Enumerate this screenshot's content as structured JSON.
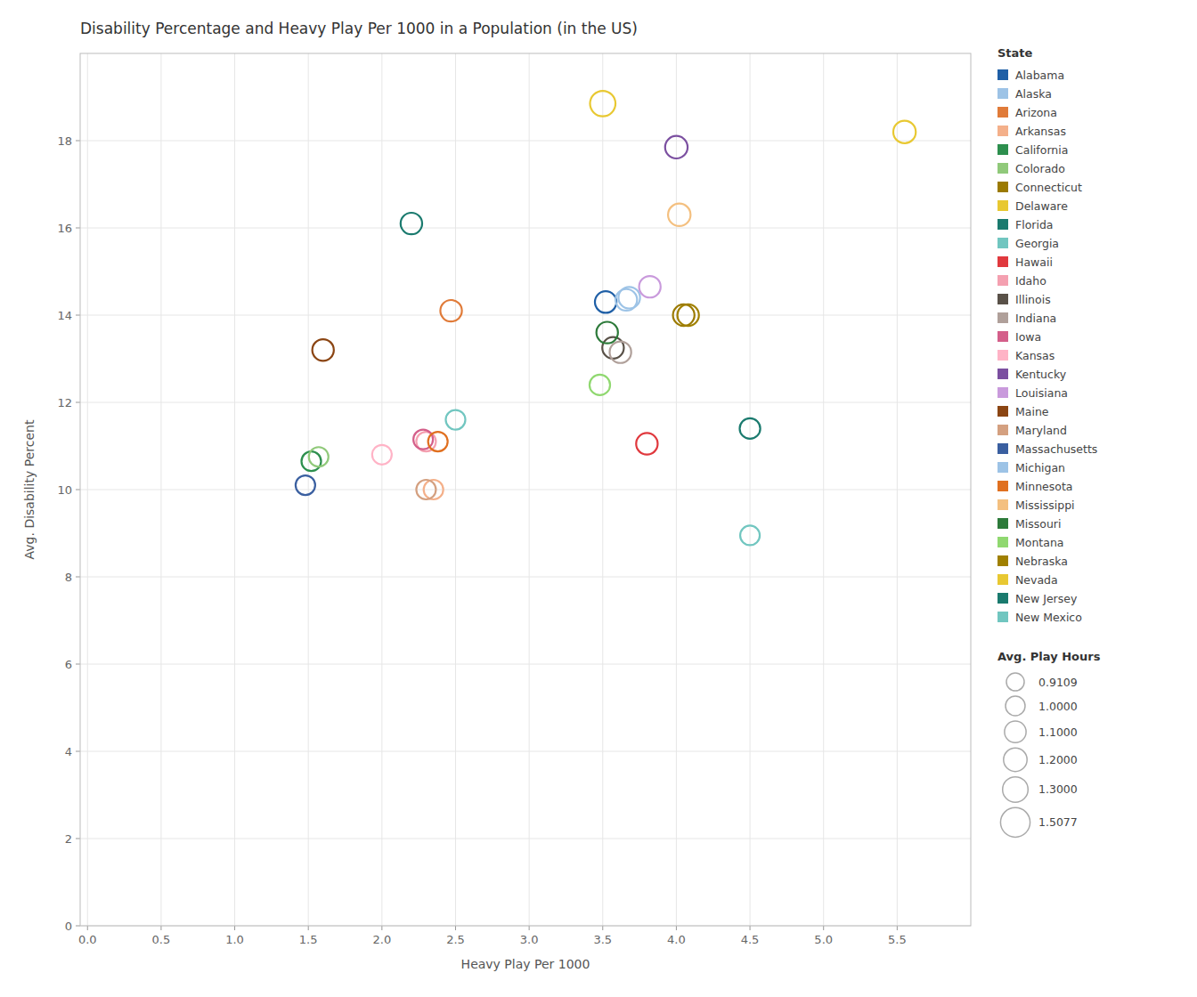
{
  "chart_data": {
    "type": "scatter",
    "title": "Disability Percentage and Heavy Play Per 1000 in a Population (in the US)",
    "x_label": "Heavy Play Per 1000",
    "y_label": "Avg. Disability Percent",
    "xlim": [
      -0.05,
      6.0
    ],
    "ylim": [
      0,
      20
    ],
    "xticks": [
      {
        "value": 0.0,
        "label": "0.0"
      },
      0.5,
      {
        "value": 1.0,
        "label": "1.0"
      },
      1.5,
      {
        "value": 2.0,
        "label": "2.0"
      },
      2.5,
      {
        "value": 3.0,
        "label": "3.0"
      },
      3.5,
      {
        "value": 4.0,
        "label": "4.0"
      },
      4.5,
      {
        "value": 5.0,
        "label": "5.0"
      },
      5.5
    ],
    "yticks": [
      0,
      2,
      4,
      6,
      8,
      10,
      12,
      14,
      16,
      18
    ],
    "grid": true,
    "legend": "right",
    "marker": "circle",
    "legend_title": "State",
    "size_title": "Avg. Play Hours",
    "series": [
      {
        "name": "Alabama",
        "color": "#1f5fa6",
        "x": [
          3.52
        ],
        "values": [
          14.3
        ],
        "sizes": [
          1.1
        ]
      },
      {
        "name": "Alaska",
        "color": "#9dc3e6",
        "x": [
          3.68
        ],
        "values": [
          14.4
        ],
        "sizes": [
          1.1
        ]
      },
      {
        "name": "Arizona",
        "color": "#e07b39",
        "x": [
          2.47
        ],
        "values": [
          14.1
        ],
        "sizes": [
          1.1
        ]
      },
      {
        "name": "Arkansas",
        "color": "#f4b08a",
        "x": [
          2.35
        ],
        "values": [
          10.0
        ],
        "sizes": [
          1.0
        ]
      },
      {
        "name": "California",
        "color": "#2d8f4e",
        "x": [
          1.52
        ],
        "values": [
          10.65
        ],
        "sizes": [
          1.0
        ]
      },
      {
        "name": "Colorado",
        "color": "#90c97a",
        "x": [
          1.57
        ],
        "values": [
          10.75
        ],
        "sizes": [
          1.0
        ]
      },
      {
        "name": "Connecticut",
        "color": "#9b7a00",
        "x": [
          4.05
        ],
        "values": [
          14.0
        ],
        "sizes": [
          1.1
        ]
      },
      {
        "name": "Delaware",
        "color": "#e8c832",
        "x": [
          3.5
        ],
        "values": [
          18.85
        ],
        "sizes": [
          1.3
        ]
      },
      {
        "name": "Florida",
        "color": "#1a7a6e",
        "x": [
          2.2
        ],
        "values": [
          16.1
        ],
        "sizes": [
          1.1
        ]
      },
      {
        "name": "Georgia",
        "color": "#71c6c0",
        "x": [
          2.5
        ],
        "values": [
          11.6
        ],
        "sizes": [
          1.0
        ]
      },
      {
        "name": "Hawaii",
        "color": "#e0393e",
        "x": [
          3.8
        ],
        "values": [
          11.05
        ],
        "sizes": [
          1.1
        ]
      },
      {
        "name": "Idaho",
        "color": "#f4a0b0",
        "x": [
          2.3
        ],
        "values": [
          11.1
        ],
        "sizes": [
          1.0
        ]
      },
      {
        "name": "Illinois",
        "color": "#595148",
        "x": [
          3.57
        ],
        "values": [
          13.25
        ],
        "sizes": [
          1.1
        ]
      },
      {
        "name": "Indiana",
        "color": "#b0a09a",
        "x": [
          3.62
        ],
        "values": [
          13.15
        ],
        "sizes": [
          1.1
        ]
      },
      {
        "name": "Iowa",
        "color": "#d45f8a",
        "x": [
          2.28
        ],
        "values": [
          11.15
        ],
        "sizes": [
          1.0
        ]
      },
      {
        "name": "Kansas",
        "color": "#ffb3c6",
        "x": [
          2.0
        ],
        "values": [
          10.8
        ],
        "sizes": [
          1.0
        ]
      },
      {
        "name": "Kentucky",
        "color": "#7b4fa0",
        "x": [
          4.0
        ],
        "values": [
          17.85
        ],
        "sizes": [
          1.15
        ]
      },
      {
        "name": "Louisiana",
        "color": "#c99adc",
        "x": [
          3.82
        ],
        "values": [
          14.65
        ],
        "sizes": [
          1.1
        ]
      },
      {
        "name": "Maine",
        "color": "#8b4513",
        "x": [
          1.6
        ],
        "values": [
          13.2
        ],
        "sizes": [
          1.1
        ]
      },
      {
        "name": "Maryland",
        "color": "#d4a080",
        "x": [
          2.3
        ],
        "values": [
          10.0
        ],
        "sizes": [
          1.0
        ]
      },
      {
        "name": "Massachusetts",
        "color": "#3a5fa0",
        "x": [
          1.48
        ],
        "values": [
          10.1
        ],
        "sizes": [
          1.0
        ]
      },
      {
        "name": "Michigan",
        "color": "#9dc3e6",
        "x": [
          3.66
        ],
        "values": [
          14.35
        ],
        "sizes": [
          1.1
        ]
      },
      {
        "name": "Minnesota",
        "color": "#e07020",
        "x": [
          2.38
        ],
        "values": [
          11.1
        ],
        "sizes": [
          1.0
        ]
      },
      {
        "name": "Mississippi",
        "color": "#f4c080",
        "x": [
          4.02
        ],
        "values": [
          16.3
        ],
        "sizes": [
          1.15
        ]
      },
      {
        "name": "Missouri",
        "color": "#2d7a3a",
        "x": [
          3.53
        ],
        "values": [
          13.6
        ],
        "sizes": [
          1.1
        ]
      },
      {
        "name": "Montana",
        "color": "#90d870",
        "x": [
          3.48
        ],
        "values": [
          12.4
        ],
        "sizes": [
          1.05
        ]
      },
      {
        "name": "Nebraska",
        "color": "#a08000",
        "x": [
          4.08
        ],
        "values": [
          14.0
        ],
        "sizes": [
          1.1
        ]
      },
      {
        "name": "Nevada",
        "color": "#e8c832",
        "x": [
          5.55
        ],
        "values": [
          18.2
        ],
        "sizes": [
          1.15
        ]
      },
      {
        "name": "New Jersey",
        "color": "#1a7a6e",
        "x": [
          4.5
        ],
        "values": [
          11.4
        ],
        "sizes": [
          1.05
        ]
      },
      {
        "name": "New Mexico",
        "color": "#71c6c0",
        "x": [
          4.5
        ],
        "values": [
          8.95
        ],
        "sizes": [
          1.0
        ]
      }
    ],
    "size_legend": [
      {
        "value": 0.9109,
        "label": "0.9109"
      },
      {
        "value": 1.0,
        "label": "1.0000"
      },
      {
        "value": 1.1,
        "label": "1.1000"
      },
      {
        "value": 1.2,
        "label": "1.2000"
      },
      {
        "value": 1.3,
        "label": "1.3000"
      },
      {
        "value": 1.5077,
        "label": "1.5077"
      }
    ]
  }
}
